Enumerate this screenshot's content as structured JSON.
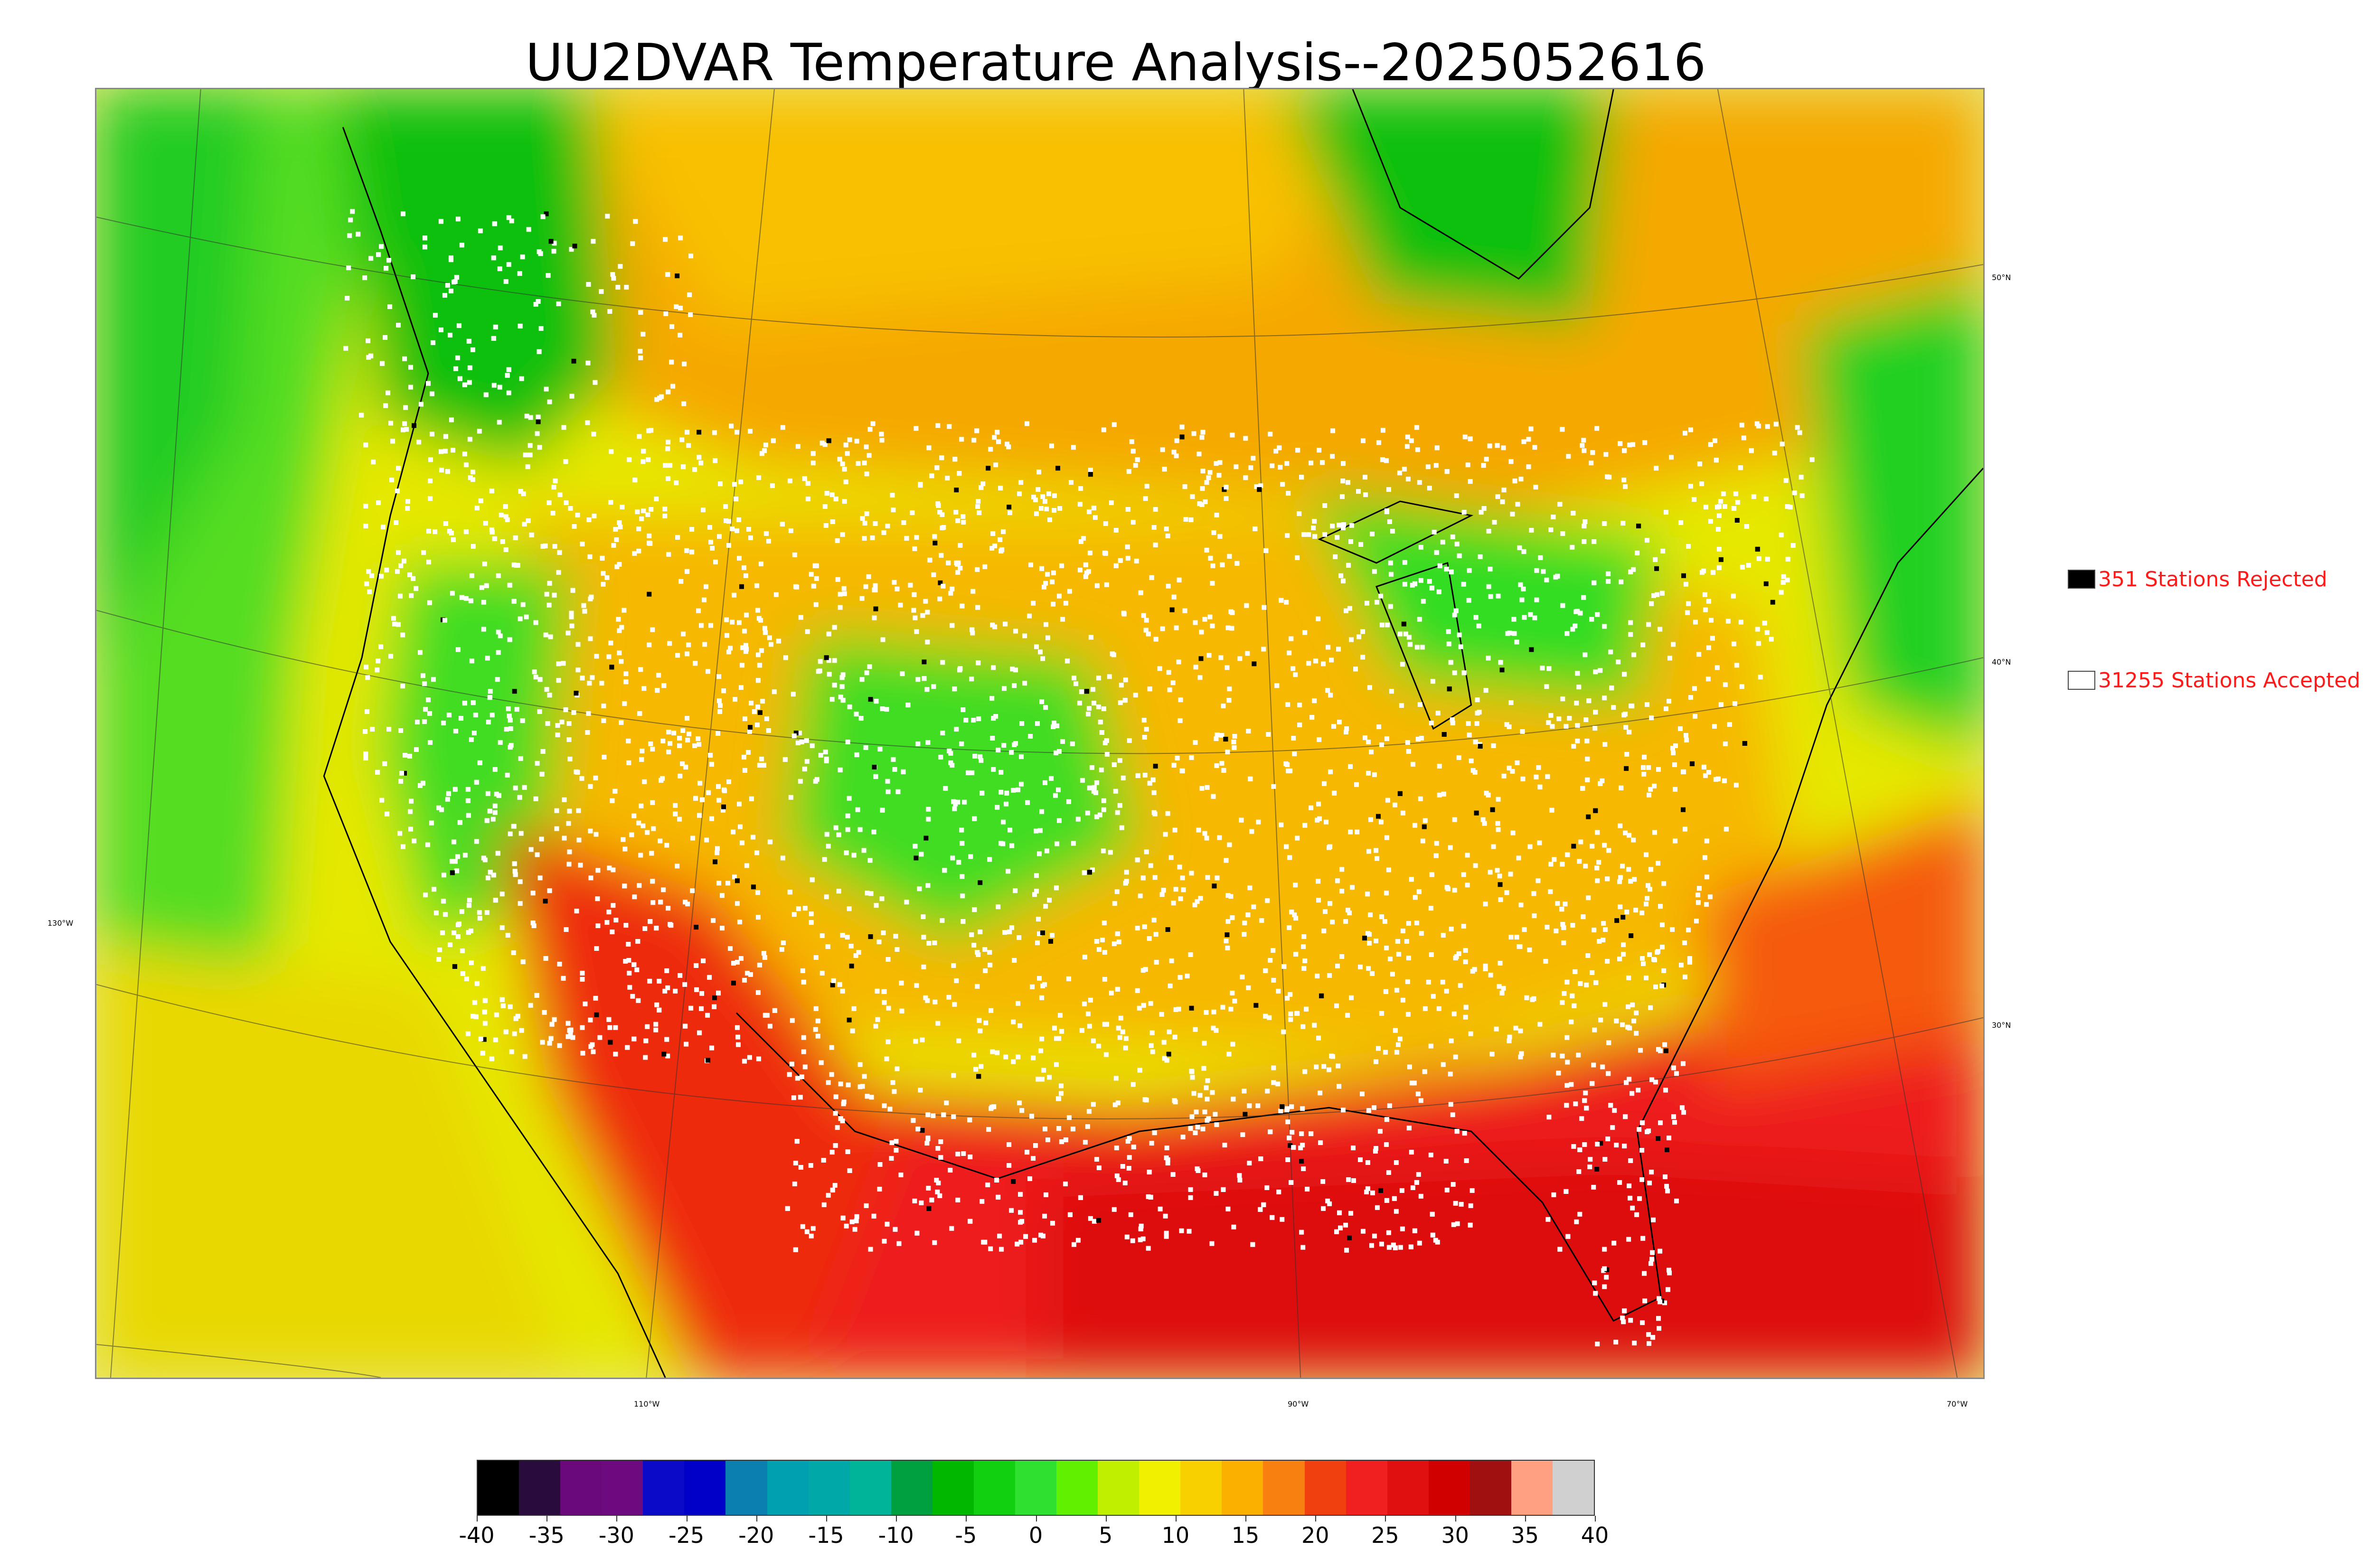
{
  "title": "UU2DVAR Temperature Analysis--2025052616",
  "legend": {
    "rejected": {
      "label": "351 Stations Rejected",
      "swatch_color": "#000000"
    },
    "accepted": {
      "label": "31255 Stations Accepted",
      "swatch_color": "#ffffff"
    }
  },
  "map": {
    "latitude_labels": [
      "50°N",
      "40°N",
      "30°N"
    ],
    "longitude_labels": [
      "130°W",
      "110°W",
      "90°W",
      "70°W"
    ],
    "field_colors": {
      "cold_green": "#10c010",
      "green": "#33e033",
      "lime": "#aaee00",
      "yellow": "#e8e800",
      "orange": "#f5a800",
      "red": "#f02020",
      "deep_red": "#d40000"
    },
    "station_dot_accepted": "#ffffff",
    "station_dot_rejected": "#000000"
  },
  "colorbar": {
    "tick_labels": [
      "-40",
      "-35",
      "-30",
      "-25",
      "-20",
      "-15",
      "-10",
      "-5",
      "0",
      "5",
      "10",
      "15",
      "20",
      "25",
      "30",
      "35",
      "40"
    ],
    "range": [
      -40,
      40
    ],
    "colors": [
      "#000000",
      "#2a0b3d",
      "#6a0a7a",
      "#6d0a80",
      "#0a0ac8",
      "#0000c8",
      "#0a7fb0",
      "#00a0b0",
      "#00a8a8",
      "#00b49a",
      "#00a040",
      "#00b800",
      "#10d010",
      "#30e030",
      "#60f000",
      "#c0f000",
      "#f0f000",
      "#f8d000",
      "#fbb000",
      "#f88010",
      "#f04010",
      "#f02020",
      "#e01010",
      "#d00000",
      "#a01010",
      "#ffa080",
      "#d0d0d0"
    ]
  }
}
